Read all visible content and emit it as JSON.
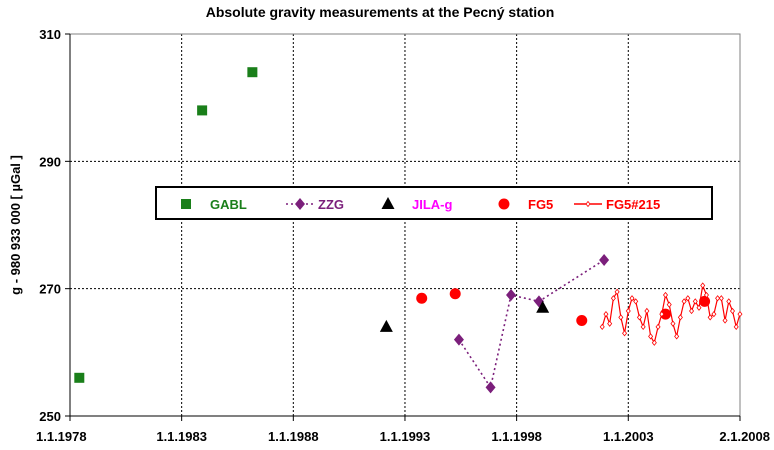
{
  "chart_data": {
    "type": "scatter",
    "title": "Absolute gravity measurements at the Pecný station",
    "ylabel": "g - 980 933 000  [ µGal ]",
    "xlabel": "",
    "ylim": [
      250,
      310
    ],
    "yticks": [
      250,
      270,
      290,
      310
    ],
    "xlim": [
      "1978-01-01",
      "2008-01-02"
    ],
    "xticks": [
      "1.1.1978",
      "1.1.1983",
      "1.1.1988",
      "1.1.1993",
      "1.1.1998",
      "1.1.2003",
      "2.1.2008"
    ],
    "grid": true,
    "legend_position": "center",
    "series": [
      {
        "name": "GABL",
        "marker": "square",
        "line": "none",
        "color": "#1a7f1a",
        "points": [
          [
            "1978-06",
            256
          ],
          [
            "1983-12",
            298
          ],
          [
            "1986-03",
            304
          ]
        ]
      },
      {
        "name": "ZZG",
        "marker": "diamond",
        "line": "dotted",
        "color": "#7b1f7b",
        "points": [
          [
            "1995-06",
            262
          ],
          [
            "1996-11",
            254.5
          ],
          [
            "1997-10",
            269
          ],
          [
            "1999-01",
            268
          ],
          [
            "2001-12",
            274.5
          ]
        ]
      },
      {
        "name": "JILA-g",
        "marker": "triangle",
        "line": "none",
        "color": "#000000",
        "points": [
          [
            "1992-03",
            264
          ],
          [
            "1999-03",
            267
          ]
        ]
      },
      {
        "name": "FG5",
        "marker": "circle",
        "line": "none",
        "color": "#ff0000",
        "points": [
          [
            "1993-10",
            268.5
          ],
          [
            "1995-04",
            269.2
          ],
          [
            "2000-12",
            265
          ],
          [
            "2004-09",
            266
          ],
          [
            "2006-06",
            268
          ]
        ]
      },
      {
        "name": "FG5#215",
        "marker": "small-diamond",
        "line": "solid",
        "color": "#ff0000",
        "points": [
          [
            "2001-11",
            264
          ],
          [
            "2002-01",
            266
          ],
          [
            "2002-03",
            264.5
          ],
          [
            "2002-05",
            268.5
          ],
          [
            "2002-07",
            269.5
          ],
          [
            "2002-09",
            265.5
          ],
          [
            "2002-11",
            263
          ],
          [
            "2003-01",
            266.5
          ],
          [
            "2003-03",
            268.5
          ],
          [
            "2003-05",
            268
          ],
          [
            "2003-07",
            265.5
          ],
          [
            "2003-09",
            264
          ],
          [
            "2003-11",
            266.5
          ],
          [
            "2004-01",
            262.5
          ],
          [
            "2004-03",
            261.5
          ],
          [
            "2004-05",
            264
          ],
          [
            "2004-07",
            266
          ],
          [
            "2004-09",
            269
          ],
          [
            "2004-11",
            267.5
          ],
          [
            "2005-01",
            264.5
          ],
          [
            "2005-03",
            262.5
          ],
          [
            "2005-05",
            265.5
          ],
          [
            "2005-07",
            268
          ],
          [
            "2005-09",
            268.5
          ],
          [
            "2005-11",
            266.5
          ],
          [
            "2006-01",
            268
          ],
          [
            "2006-03",
            267
          ],
          [
            "2006-05",
            270.5
          ],
          [
            "2006-07",
            269
          ],
          [
            "2006-09",
            265.5
          ],
          [
            "2006-11",
            266
          ],
          [
            "2007-01",
            268.5
          ],
          [
            "2007-03",
            268.5
          ],
          [
            "2007-05",
            265
          ],
          [
            "2007-07",
            268
          ],
          [
            "2007-09",
            266.5
          ],
          [
            "2007-11",
            264
          ],
          [
            "2008-01",
            266
          ]
        ]
      }
    ]
  }
}
